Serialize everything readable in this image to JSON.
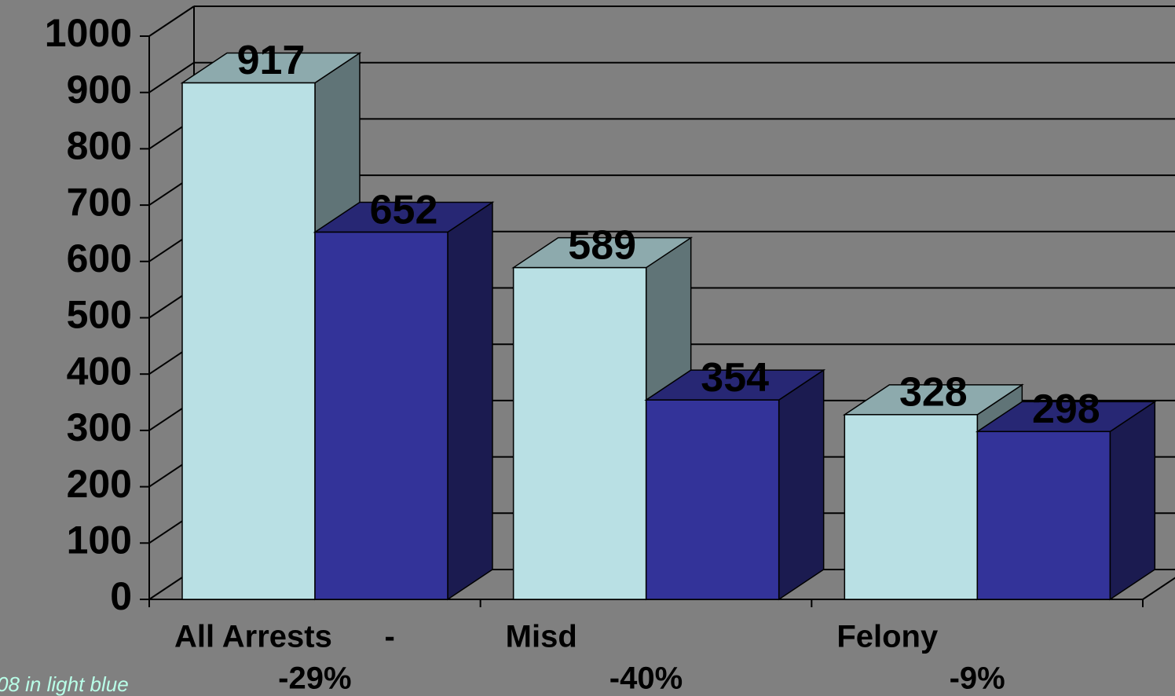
{
  "chart_data": {
    "type": "bar3d",
    "categories": [
      "All Arrests      -",
      "Misd",
      "Felony"
    ],
    "subcategories": [
      "-29%",
      "-40%",
      "-9%"
    ],
    "series": [
      {
        "color": "#b9e0e4",
        "values": [
          917,
          589,
          328
        ]
      },
      {
        "color": "#333399",
        "values": [
          652,
          354,
          298
        ]
      }
    ],
    "ylim": [
      0,
      1000
    ],
    "yticks": [
      0,
      100,
      200,
      300,
      400,
      500,
      600,
      700,
      800,
      900,
      1000
    ],
    "grid": true,
    "annotation": "08 in light blue"
  }
}
